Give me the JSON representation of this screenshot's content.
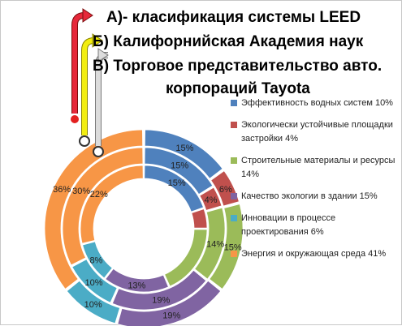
{
  "title": {
    "line1": "А)- класификация системы LEED",
    "line2": "Б) Калифорнийская Академия наук",
    "line3": "В) Торговое представительство авто.",
    "line4": "корпораций  Tayota"
  },
  "colors": {
    "blue": "#4f81bd",
    "red": "#c0504d",
    "green": "#9bbb59",
    "purple": "#8064a2",
    "teal": "#4bacc6",
    "orange": "#f79646",
    "arrow_red": "#e6283a",
    "arrow_yellow": "#f2ee10",
    "arrow_grey": "#dcdcdc"
  },
  "icons": [
    "red-curved-arrow-icon",
    "yellow-curved-arrow-icon",
    "white-curved-arrow-icon"
  ],
  "chart_data": {
    "type": "doughnut",
    "categories": [
      "Эффективность водных систем",
      "Экологически устойчивые площадки застройки",
      "Строительные материалы и ресурсы",
      "Качество экологии в здании",
      "Инновации в процессе проектирования",
      "Энергия и окружающая среда"
    ],
    "legend": [
      "Эффективность водных систем 10%",
      "Экологически устойчивые площадки застройки 4%",
      "Строительные материалы и ресурсы 14%",
      "Качество экологии в здании 15%",
      "Инновации в процессе проектирования 6%",
      "Энергия и окружающая среда 41%"
    ],
    "series_colors": [
      "#4f81bd",
      "#c0504d",
      "#9bbb59",
      "#8064a2",
      "#4bacc6",
      "#f79646"
    ],
    "series": [
      {
        "values": [
          15,
          6,
          15,
          19,
          10,
          36
        ],
        "labels": [
          "15%",
          "6%",
          "15%",
          "19%",
          "10%",
          "36%"
        ]
      },
      {
        "values": [
          15,
          4,
          14,
          19,
          10,
          30
        ],
        "labels": [
          "15%",
          "4%",
          "14%",
          "19%",
          "10%",
          "30%"
        ]
      },
      {
        "values": [
          15,
          4,
          14,
          13,
          8,
          22
        ],
        "labels": [
          "15%",
          "",
          "",
          "13%",
          "8%",
          "22%"
        ]
      }
    ],
    "legend_position": "right"
  }
}
